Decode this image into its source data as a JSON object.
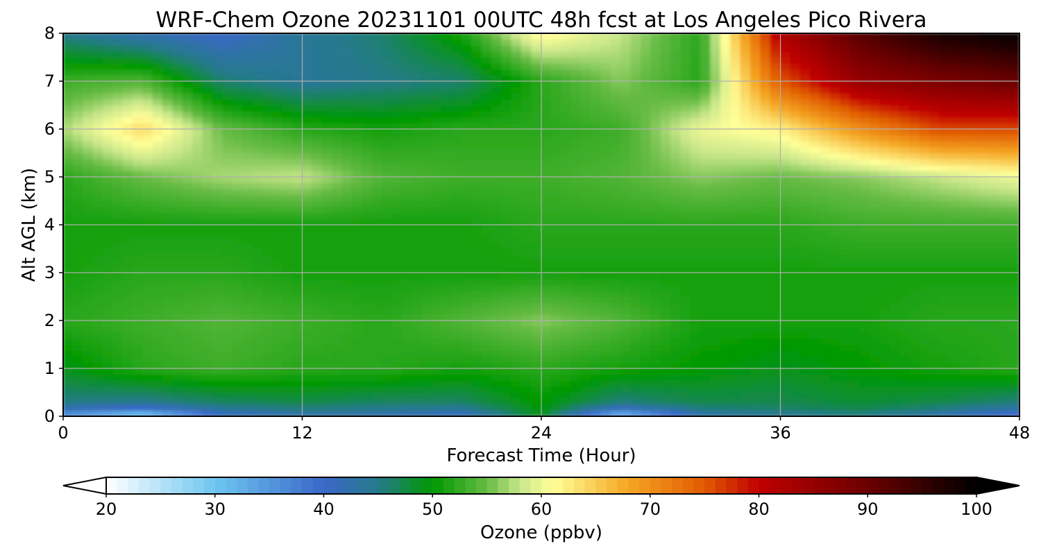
{
  "chart_data": {
    "type": "heatmap",
    "title": "WRF-Chem Ozone  20231101 00UTC 48h fcst at Los Angeles Pico Rivera",
    "xlabel": "Forecast Time (Hour)",
    "ylabel": "Alt AGL (km)",
    "xlim": [
      0,
      48
    ],
    "ylim": [
      0,
      8
    ],
    "xticks": [
      0,
      12,
      24,
      36,
      48
    ],
    "yticks": [
      0,
      1,
      2,
      3,
      4,
      5,
      6,
      7,
      8
    ],
    "grid": true,
    "z_units": "ppbv",
    "x": [
      0,
      4,
      8,
      12,
      16,
      20,
      24,
      28,
      32,
      36,
      40,
      44,
      48
    ],
    "y": [
      0,
      0.25,
      1,
      2,
      3,
      4,
      5,
      6,
      7,
      8
    ],
    "z": [
      [
        34,
        28,
        40,
        42,
        42,
        40,
        49,
        30,
        42,
        44,
        45,
        42,
        38
      ],
      [
        45,
        44,
        46,
        47,
        46,
        46,
        50,
        45,
        47,
        47,
        48,
        47,
        45
      ],
      [
        49,
        52,
        53,
        52,
        52,
        51,
        52,
        51,
        50,
        49,
        50,
        51,
        52
      ],
      [
        52,
        53,
        54,
        53,
        52,
        54,
        56,
        54,
        51,
        51,
        51,
        52,
        52
      ],
      [
        51,
        52,
        52,
        51,
        51,
        51,
        51,
        51,
        51,
        51,
        51,
        51,
        51
      ],
      [
        51,
        51,
        51,
        51,
        51,
        51,
        52,
        52,
        52,
        52,
        53,
        53,
        53
      ],
      [
        52,
        55,
        57,
        58,
        54,
        53,
        53,
        54,
        56,
        55,
        56,
        58,
        60
      ],
      [
        57,
        64,
        55,
        52,
        51,
        52,
        52,
        53,
        60,
        62,
        70,
        76,
        76
      ],
      [
        53,
        54,
        46,
        44,
        45,
        46,
        52,
        56,
        52,
        75,
        85,
        88,
        90
      ],
      [
        45,
        42,
        40,
        44,
        46,
        51,
        62,
        58,
        52,
        82,
        92,
        98,
        100
      ]
    ],
    "colorbar": {
      "label": "Ozone  (ppbv)",
      "min": 20,
      "max": 100,
      "ticks": [
        20,
        30,
        40,
        50,
        60,
        70,
        80,
        90,
        100
      ],
      "extend": "both",
      "stops": [
        {
          "v": 20,
          "c": "#ffffff"
        },
        {
          "v": 30,
          "c": "#6ec6f0"
        },
        {
          "v": 40,
          "c": "#3a68c8"
        },
        {
          "v": 45,
          "c": "#257a8a"
        },
        {
          "v": 50,
          "c": "#009900"
        },
        {
          "v": 55,
          "c": "#66bb44"
        },
        {
          "v": 58,
          "c": "#c8e68a"
        },
        {
          "v": 61,
          "c": "#ffff99"
        },
        {
          "v": 68,
          "c": "#f5a623"
        },
        {
          "v": 75,
          "c": "#e05a00"
        },
        {
          "v": 80,
          "c": "#c00000"
        },
        {
          "v": 90,
          "c": "#6b0000"
        },
        {
          "v": 100,
          "c": "#000000"
        }
      ]
    }
  }
}
